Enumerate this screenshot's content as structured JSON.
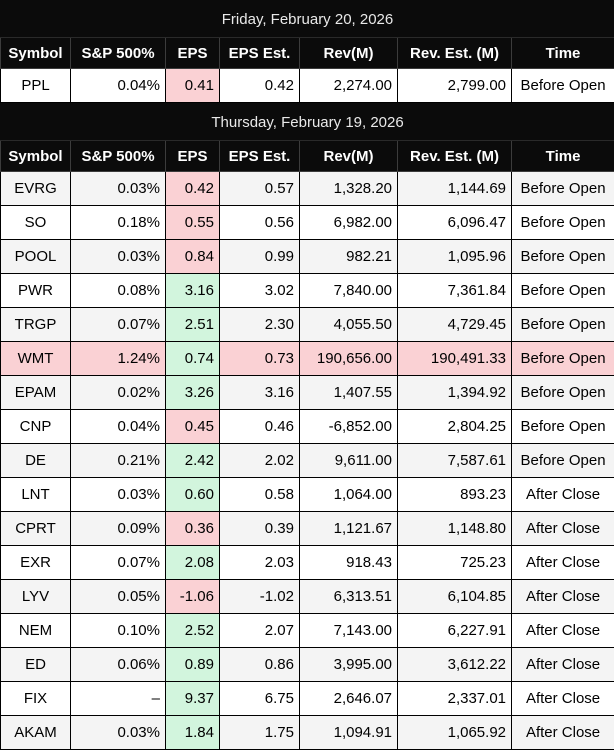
{
  "columns": [
    "Symbol",
    "S&P 500%",
    "EPS",
    "EPS Est.",
    "Rev(M)",
    "Rev. Est. (M)",
    "Time"
  ],
  "colors": {
    "header_bg": "#0b0b0b",
    "header_text": "#ffffff",
    "eps_beat_bg": "#d2f5dd",
    "eps_miss_bg": "#fad1d4",
    "row_highlight_bg": "#fad1d4",
    "stripe_bg": "#f4f4f4"
  },
  "sections": [
    {
      "date": "Friday, February 20, 2026",
      "rows": [
        {
          "symbol": "PPL",
          "sp500": "0.04%",
          "eps": "0.41",
          "eps_result": "miss",
          "eps_est": "0.42",
          "rev": "2,274.00",
          "rev_est": "2,799.00",
          "time": "Before Open",
          "row_highlight": false
        }
      ]
    },
    {
      "date": "Thursday, February 19, 2026",
      "rows": [
        {
          "symbol": "EVRG",
          "sp500": "0.03%",
          "eps": "0.42",
          "eps_result": "miss",
          "eps_est": "0.57",
          "rev": "1,328.20",
          "rev_est": "1,144.69",
          "time": "Before Open",
          "row_highlight": false
        },
        {
          "symbol": "SO",
          "sp500": "0.18%",
          "eps": "0.55",
          "eps_result": "miss",
          "eps_est": "0.56",
          "rev": "6,982.00",
          "rev_est": "6,096.47",
          "time": "Before Open",
          "row_highlight": false
        },
        {
          "symbol": "POOL",
          "sp500": "0.03%",
          "eps": "0.84",
          "eps_result": "miss",
          "eps_est": "0.99",
          "rev": "982.21",
          "rev_est": "1,095.96",
          "time": "Before Open",
          "row_highlight": false
        },
        {
          "symbol": "PWR",
          "sp500": "0.08%",
          "eps": "3.16",
          "eps_result": "beat",
          "eps_est": "3.02",
          "rev": "7,840.00",
          "rev_est": "7,361.84",
          "time": "Before Open",
          "row_highlight": false
        },
        {
          "symbol": "TRGP",
          "sp500": "0.07%",
          "eps": "2.51",
          "eps_result": "beat",
          "eps_est": "2.30",
          "rev": "4,055.50",
          "rev_est": "4,729.45",
          "time": "Before Open",
          "row_highlight": false
        },
        {
          "symbol": "WMT",
          "sp500": "1.24%",
          "eps": "0.74",
          "eps_result": "beat",
          "eps_est": "0.73",
          "rev": "190,656.00",
          "rev_est": "190,491.33",
          "time": "Before Open",
          "row_highlight": true
        },
        {
          "symbol": "EPAM",
          "sp500": "0.02%",
          "eps": "3.26",
          "eps_result": "beat",
          "eps_est": "3.16",
          "rev": "1,407.55",
          "rev_est": "1,394.92",
          "time": "Before Open",
          "row_highlight": false
        },
        {
          "symbol": "CNP",
          "sp500": "0.04%",
          "eps": "0.45",
          "eps_result": "miss",
          "eps_est": "0.46",
          "rev": "-6,852.00",
          "rev_est": "2,804.25",
          "time": "Before Open",
          "row_highlight": false
        },
        {
          "symbol": "DE",
          "sp500": "0.21%",
          "eps": "2.42",
          "eps_result": "beat",
          "eps_est": "2.02",
          "rev": "9,611.00",
          "rev_est": "7,587.61",
          "time": "Before Open",
          "row_highlight": false
        },
        {
          "symbol": "LNT",
          "sp500": "0.03%",
          "eps": "0.60",
          "eps_result": "beat",
          "eps_est": "0.58",
          "rev": "1,064.00",
          "rev_est": "893.23",
          "time": "After Close",
          "row_highlight": false
        },
        {
          "symbol": "CPRT",
          "sp500": "0.09%",
          "eps": "0.36",
          "eps_result": "miss",
          "eps_est": "0.39",
          "rev": "1,121.67",
          "rev_est": "1,148.80",
          "time": "After Close",
          "row_highlight": false
        },
        {
          "symbol": "EXR",
          "sp500": "0.07%",
          "eps": "2.08",
          "eps_result": "beat",
          "eps_est": "2.03",
          "rev": "918.43",
          "rev_est": "725.23",
          "time": "After Close",
          "row_highlight": false
        },
        {
          "symbol": "LYV",
          "sp500": "0.05%",
          "eps": "-1.06",
          "eps_result": "miss",
          "eps_est": "-1.02",
          "rev": "6,313.51",
          "rev_est": "6,104.85",
          "time": "After Close",
          "row_highlight": false
        },
        {
          "symbol": "NEM",
          "sp500": "0.10%",
          "eps": "2.52",
          "eps_result": "beat",
          "eps_est": "2.07",
          "rev": "7,143.00",
          "rev_est": "6,227.91",
          "time": "After Close",
          "row_highlight": false
        },
        {
          "symbol": "ED",
          "sp500": "0.06%",
          "eps": "0.89",
          "eps_result": "beat",
          "eps_est": "0.86",
          "rev": "3,995.00",
          "rev_est": "3,612.22",
          "time": "After Close",
          "row_highlight": false
        },
        {
          "symbol": "FIX",
          "sp500": "–",
          "eps": "9.37",
          "eps_result": "beat",
          "eps_est": "6.75",
          "rev": "2,646.07",
          "rev_est": "2,337.01",
          "time": "After Close",
          "row_highlight": false
        },
        {
          "symbol": "AKAM",
          "sp500": "0.03%",
          "eps": "1.84",
          "eps_result": "beat",
          "eps_est": "1.75",
          "rev": "1,094.91",
          "rev_est": "1,065.92",
          "time": "After Close",
          "row_highlight": false
        }
      ]
    }
  ]
}
